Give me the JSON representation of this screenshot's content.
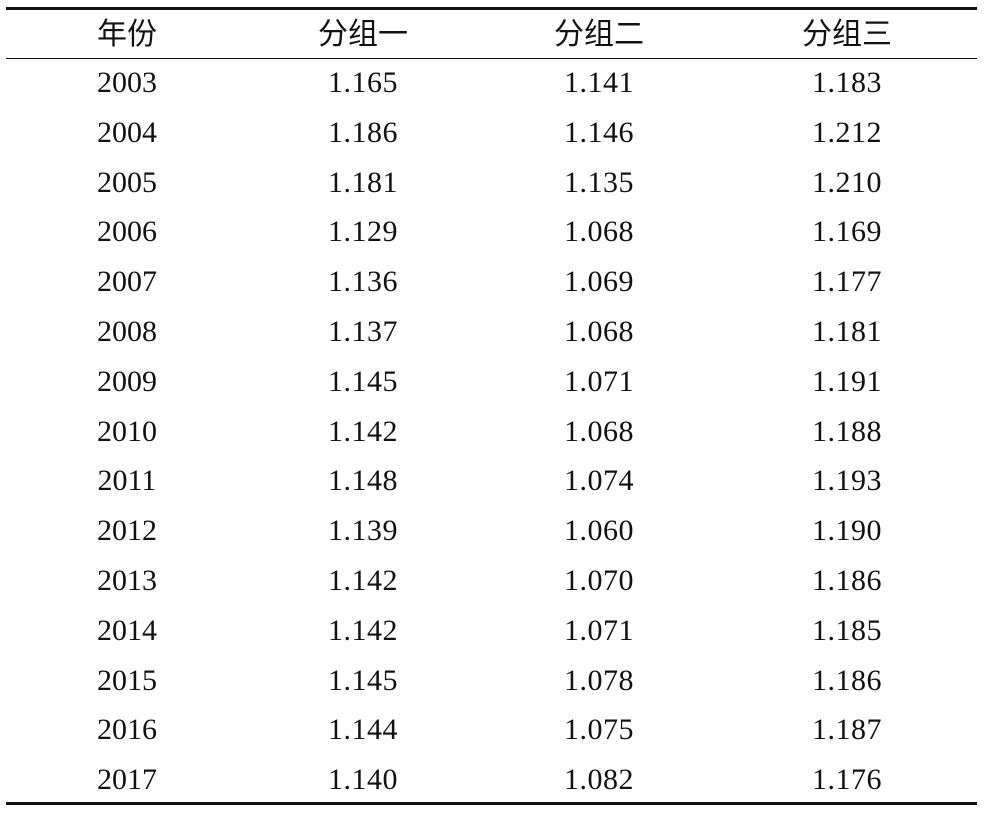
{
  "table": {
    "header": [
      "年份",
      "分组一",
      "分组二",
      "分组三"
    ],
    "rows": [
      [
        "2003",
        "1.165",
        "1.141",
        "1.183"
      ],
      [
        "2004",
        "1.186",
        "1.146",
        "1.212"
      ],
      [
        "2005",
        "1.181",
        "1.135",
        "1.210"
      ],
      [
        "2006",
        "1.129",
        "1.068",
        "1.169"
      ],
      [
        "2007",
        "1.136",
        "1.069",
        "1.177"
      ],
      [
        "2008",
        "1.137",
        "1.068",
        "1.181"
      ],
      [
        "2009",
        "1.145",
        "1.071",
        "1.191"
      ],
      [
        "2010",
        "1.142",
        "1.068",
        "1.188"
      ],
      [
        "2011",
        "1.148",
        "1.074",
        "1.193"
      ],
      [
        "2012",
        "1.139",
        "1.060",
        "1.190"
      ],
      [
        "2013",
        "1.142",
        "1.070",
        "1.186"
      ],
      [
        "2014",
        "1.142",
        "1.071",
        "1.185"
      ],
      [
        "2015",
        "1.145",
        "1.078",
        "1.186"
      ],
      [
        "2016",
        "1.144",
        "1.075",
        "1.187"
      ],
      [
        "2017",
        "1.140",
        "1.082",
        "1.176"
      ]
    ]
  }
}
